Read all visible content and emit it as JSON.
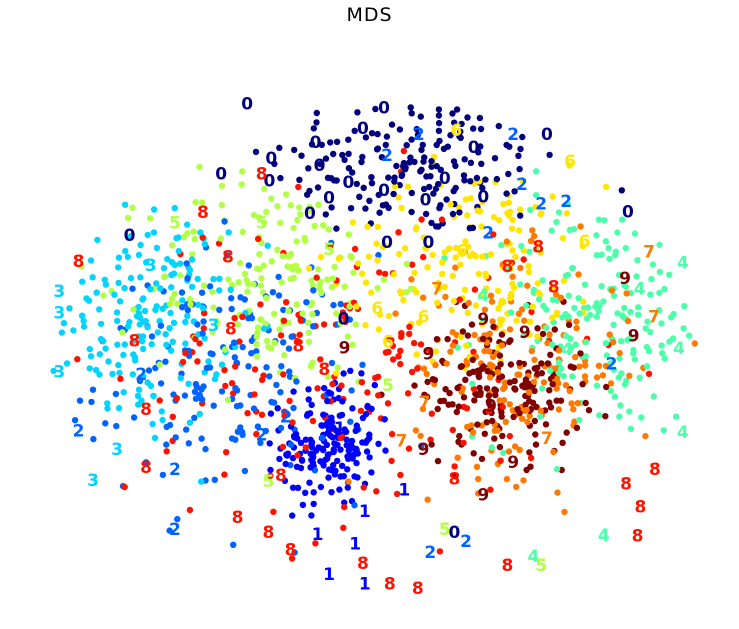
{
  "chart_data": {
    "type": "scatter",
    "title": "MDS",
    "xlabel": "",
    "ylabel": "",
    "axes_visible": false,
    "grid": false,
    "legend": "none",
    "xlim": [
      -3.6,
      3.3
    ],
    "ylim": [
      -2.6,
      2.6
    ],
    "colormap": "jet",
    "class_colors": {
      "0": "#00007f",
      "1": "#0000ff",
      "2": "#0063ff",
      "3": "#00d4ff",
      "4": "#4dffaa",
      "5": "#b1ff46",
      "6": "#ffe600",
      "7": "#ff7a00",
      "8": "#ff1300",
      "9": "#7f0000"
    },
    "class_centers": {
      "0": [
        0.3,
        1.9
      ],
      "1": [
        -0.6,
        -1.0
      ],
      "2": [
        -1.6,
        -0.3
      ],
      "3": [
        -2.5,
        0.3
      ],
      "4": [
        2.2,
        0.3
      ],
      "5": [
        -1.2,
        0.7
      ],
      "6": [
        0.9,
        0.9
      ],
      "7": [
        1.4,
        -0.2
      ],
      "8": [
        -0.5,
        -0.2
      ],
      "9": [
        1.2,
        -0.4
      ]
    },
    "class_spreads": {
      "0": [
        1.1,
        0.55
      ],
      "1": [
        0.35,
        0.45
      ],
      "2": [
        1.0,
        0.9
      ],
      "3": [
        0.6,
        0.8
      ],
      "4": [
        0.9,
        0.9
      ],
      "5": [
        0.9,
        0.8
      ],
      "6": [
        1.0,
        0.7
      ],
      "7": [
        0.8,
        0.8
      ],
      "8": [
        1.6,
        1.2
      ],
      "9": [
        0.6,
        0.5
      ]
    },
    "points_per_class": 170,
    "labels": [
      {
        "t": "0",
        "x": -1.45,
        "y": 2.34
      },
      {
        "t": "0",
        "x": -0.03,
        "y": 2.29
      },
      {
        "t": "0",
        "x": -0.25,
        "y": 2.05
      },
      {
        "t": "2",
        "x": 0.33,
        "y": 1.98
      },
      {
        "t": "6",
        "x": 0.72,
        "y": 2.03
      },
      {
        "t": "2",
        "x": 1.31,
        "y": 1.98
      },
      {
        "t": "0",
        "x": 1.66,
        "y": 1.98
      },
      {
        "t": "0",
        "x": -0.74,
        "y": 1.89
      },
      {
        "t": "0",
        "x": 0.9,
        "y": 1.83
      },
      {
        "t": "6",
        "x": 1.9,
        "y": 1.67
      },
      {
        "t": "2",
        "x": 0.0,
        "y": 1.74
      },
      {
        "t": "0",
        "x": -1.2,
        "y": 1.7
      },
      {
        "t": "0",
        "x": -0.7,
        "y": 1.62
      },
      {
        "t": "0",
        "x": -1.72,
        "y": 1.52
      },
      {
        "t": "0",
        "x": -1.22,
        "y": 1.44
      },
      {
        "t": "0",
        "x": -0.4,
        "y": 1.42
      },
      {
        "t": "0",
        "x": 0.6,
        "y": 1.47
      },
      {
        "t": "8",
        "x": -1.3,
        "y": 1.52
      },
      {
        "t": "0",
        "x": -0.03,
        "y": 1.33
      },
      {
        "t": "0",
        "x": 0.4,
        "y": 1.22
      },
      {
        "t": "2",
        "x": 1.4,
        "y": 1.4
      },
      {
        "t": "2",
        "x": 1.6,
        "y": 1.17
      },
      {
        "t": "2",
        "x": 1.86,
        "y": 1.2
      },
      {
        "t": "0",
        "x": 2.5,
        "y": 1.08
      },
      {
        "t": "8",
        "x": -1.91,
        "y": 1.07
      },
      {
        "t": "0",
        "x": -0.8,
        "y": 1.06
      },
      {
        "t": "0",
        "x": -0.6,
        "y": 1.24
      },
      {
        "t": "0",
        "x": 1.0,
        "y": 1.25
      },
      {
        "t": "2",
        "x": 1.05,
        "y": 0.83
      },
      {
        "t": "0",
        "x": 0.0,
        "y": 0.72
      },
      {
        "t": "0",
        "x": 0.43,
        "y": 0.72
      },
      {
        "t": "0",
        "x": -2.67,
        "y": 0.8
      },
      {
        "t": "5",
        "x": -1.3,
        "y": 0.95
      },
      {
        "t": "5",
        "x": -2.2,
        "y": 0.95
      },
      {
        "t": "8",
        "x": 1.57,
        "y": 0.67
      },
      {
        "t": "5",
        "x": -0.6,
        "y": 0.64
      },
      {
        "t": "6",
        "x": 2.05,
        "y": 0.73
      },
      {
        "t": "7",
        "x": 2.72,
        "y": 0.61
      },
      {
        "t": "4",
        "x": 3.07,
        "y": 0.48
      },
      {
        "t": "6",
        "x": 0.78,
        "y": 0.62
      },
      {
        "t": "8",
        "x": -3.2,
        "y": 0.5
      },
      {
        "t": "8",
        "x": -1.65,
        "y": 0.55
      },
      {
        "t": "3",
        "x": -2.45,
        "y": 0.45
      },
      {
        "t": "8",
        "x": 1.25,
        "y": 0.44
      },
      {
        "t": "9",
        "x": 2.47,
        "y": 0.3
      },
      {
        "t": "3",
        "x": -3.4,
        "y": 0.15
      },
      {
        "t": "7",
        "x": 0.52,
        "y": 0.18
      },
      {
        "t": "4",
        "x": 1.0,
        "y": 0.1
      },
      {
        "t": "4",
        "x": 2.62,
        "y": 0.18
      },
      {
        "t": "8",
        "x": 1.73,
        "y": 0.2
      },
      {
        "t": "3",
        "x": -3.4,
        "y": -0.1
      },
      {
        "t": "0",
        "x": -0.45,
        "y": -0.17
      },
      {
        "t": "6",
        "x": -0.1,
        "y": -0.05
      },
      {
        "t": "6",
        "x": 0.38,
        "y": -0.15
      },
      {
        "t": "7",
        "x": 2.77,
        "y": -0.15
      },
      {
        "t": "9",
        "x": 1.0,
        "y": -0.18
      },
      {
        "t": "9",
        "x": 1.43,
        "y": -0.33
      },
      {
        "t": "9",
        "x": 2.56,
        "y": -0.37
      },
      {
        "t": "3",
        "x": -1.8,
        "y": -0.25
      },
      {
        "t": "8",
        "x": -1.62,
        "y": -0.29
      },
      {
        "t": "8",
        "x": -2.62,
        "y": -0.43
      },
      {
        "t": "8",
        "x": -0.92,
        "y": -0.49
      },
      {
        "t": "9",
        "x": -0.44,
        "y": -0.51
      },
      {
        "t": "6",
        "x": 0.01,
        "y": -0.44
      },
      {
        "t": "9",
        "x": 0.43,
        "y": -0.58
      },
      {
        "t": "4",
        "x": 1.87,
        "y": -0.53
      },
      {
        "t": "4",
        "x": 3.03,
        "y": -0.52
      },
      {
        "t": "2",
        "x": 2.33,
        "y": -0.7
      },
      {
        "t": "8",
        "x": -0.65,
        "y": -0.76
      },
      {
        "t": "3",
        "x": -3.4,
        "y": -0.79
      },
      {
        "t": "2",
        "x": -2.55,
        "y": -0.82
      },
      {
        "t": "5",
        "x": 0.01,
        "y": -0.95
      },
      {
        "t": "7",
        "x": 0.39,
        "y": -1.15
      },
      {
        "t": "9",
        "x": 1.08,
        "y": -1.19
      },
      {
        "t": "8",
        "x": -2.5,
        "y": -1.23
      },
      {
        "t": "2",
        "x": -1.05,
        "y": -1.32
      },
      {
        "t": "2",
        "x": -1.3,
        "y": -1.53
      },
      {
        "t": "2",
        "x": -3.2,
        "y": -1.48
      },
      {
        "t": "1",
        "x": -0.49,
        "y": -1.45
      },
      {
        "t": "4",
        "x": 3.07,
        "y": -1.5
      },
      {
        "t": "7",
        "x": 1.66,
        "y": -1.57
      },
      {
        "t": "3",
        "x": -2.8,
        "y": -1.7
      },
      {
        "t": "7",
        "x": 0.15,
        "y": -1.6
      },
      {
        "t": "9",
        "x": 0.38,
        "y": -1.7
      },
      {
        "t": "8",
        "x": -2.5,
        "y": -1.91
      },
      {
        "t": "9",
        "x": 1.31,
        "y": -1.85
      },
      {
        "t": "8",
        "x": 2.78,
        "y": -1.93
      },
      {
        "t": "2",
        "x": -2.2,
        "y": -1.93
      },
      {
        "t": "3",
        "x": -3.05,
        "y": -2.06
      },
      {
        "t": "8",
        "x": -1.1,
        "y": -2.0
      },
      {
        "t": "8",
        "x": 0.7,
        "y": -2.04
      },
      {
        "t": "5",
        "x": -1.23,
        "y": -2.07
      },
      {
        "t": "1",
        "x": 0.18,
        "y": -2.17
      },
      {
        "t": "8",
        "x": 2.48,
        "y": -2.1
      },
      {
        "t": "9",
        "x": 1.0,
        "y": -2.23
      },
      {
        "t": "8",
        "x": 2.63,
        "y": -2.37
      },
      {
        "t": "8",
        "x": -1.55,
        "y": -2.49
      },
      {
        "t": "1",
        "x": -0.23,
        "y": -2.42
      },
      {
        "t": "2",
        "x": -2.2,
        "y": -2.63
      },
      {
        "t": "8",
        "x": -1.23,
        "y": -2.67
      },
      {
        "t": "1",
        "x": -0.72,
        "y": -2.69
      },
      {
        "t": "5",
        "x": 0.6,
        "y": -2.63
      },
      {
        "t": "4",
        "x": 2.25,
        "y": -2.7
      },
      {
        "t": "8",
        "x": 2.6,
        "y": -2.71
      },
      {
        "t": "2",
        "x": 0.82,
        "y": -2.77
      },
      {
        "t": "8",
        "x": -1.0,
        "y": -2.87
      },
      {
        "t": "1",
        "x": -0.33,
        "y": -2.8
      },
      {
        "t": "0",
        "x": 0.7,
        "y": -2.67
      },
      {
        "t": "4",
        "x": 1.52,
        "y": -2.95
      },
      {
        "t": "8",
        "x": -0.25,
        "y": -3.03
      },
      {
        "t": "8",
        "x": 1.25,
        "y": -3.05
      },
      {
        "t": "2",
        "x": 0.45,
        "y": -2.9
      },
      {
        "t": "5",
        "x": 1.6,
        "y": -3.05
      },
      {
        "t": "8",
        "x": 0.03,
        "y": -3.27
      },
      {
        "t": "8",
        "x": 0.32,
        "y": -3.32
      },
      {
        "t": "1",
        "x": -0.6,
        "y": -3.16
      },
      {
        "t": "1",
        "x": -0.23,
        "y": -3.27
      }
    ]
  }
}
